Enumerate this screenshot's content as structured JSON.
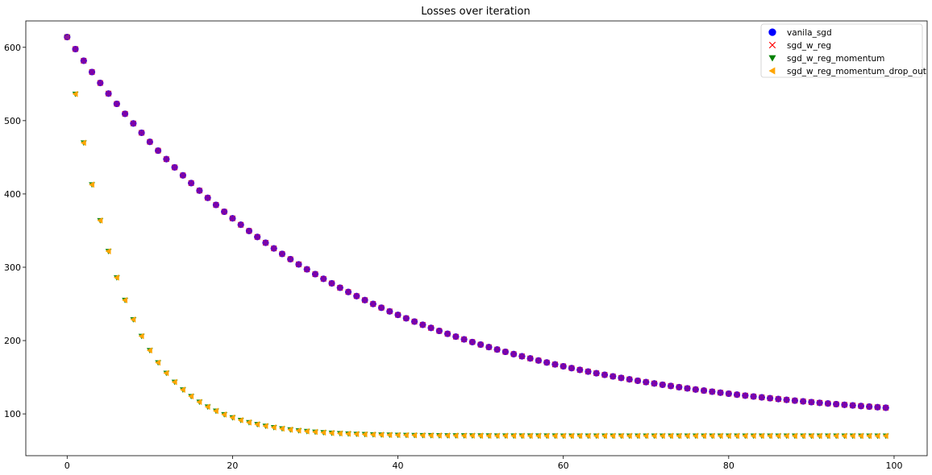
{
  "chart_data": {
    "type": "scatter",
    "title": "Losses over iteration",
    "xlabel": "",
    "ylabel": "",
    "xlim": [
      -5,
      104
    ],
    "ylim": [
      43,
      636
    ],
    "xticks": [
      0,
      20,
      40,
      60,
      80,
      100
    ],
    "yticks": [
      100,
      200,
      300,
      400,
      500,
      600
    ],
    "grid": false,
    "legend_position": "top-right",
    "iterations": {
      "start": 0,
      "end": 99
    },
    "series": [
      {
        "name": "vanila_sgd",
        "marker": "circle",
        "color": "#0000ff",
        "model": {
          "init": 614,
          "floor": 85,
          "decay": 0.0315
        }
      },
      {
        "name": "sgd_w_reg",
        "marker": "x",
        "color": "#ff0000",
        "model": {
          "init": 614,
          "floor": 85,
          "decay": 0.0315
        }
      },
      {
        "name": "sgd_w_reg_momentum",
        "marker": "triangle-down",
        "color": "#008000",
        "model": {
          "init": 614,
          "floor": 70,
          "decay": 0.154
        }
      },
      {
        "name": "sgd_w_reg_momentum_drop_out",
        "marker": "triangle-left",
        "color": "#ffa500",
        "model": {
          "init": 614,
          "floor": 70,
          "decay": 0.154
        }
      }
    ]
  }
}
